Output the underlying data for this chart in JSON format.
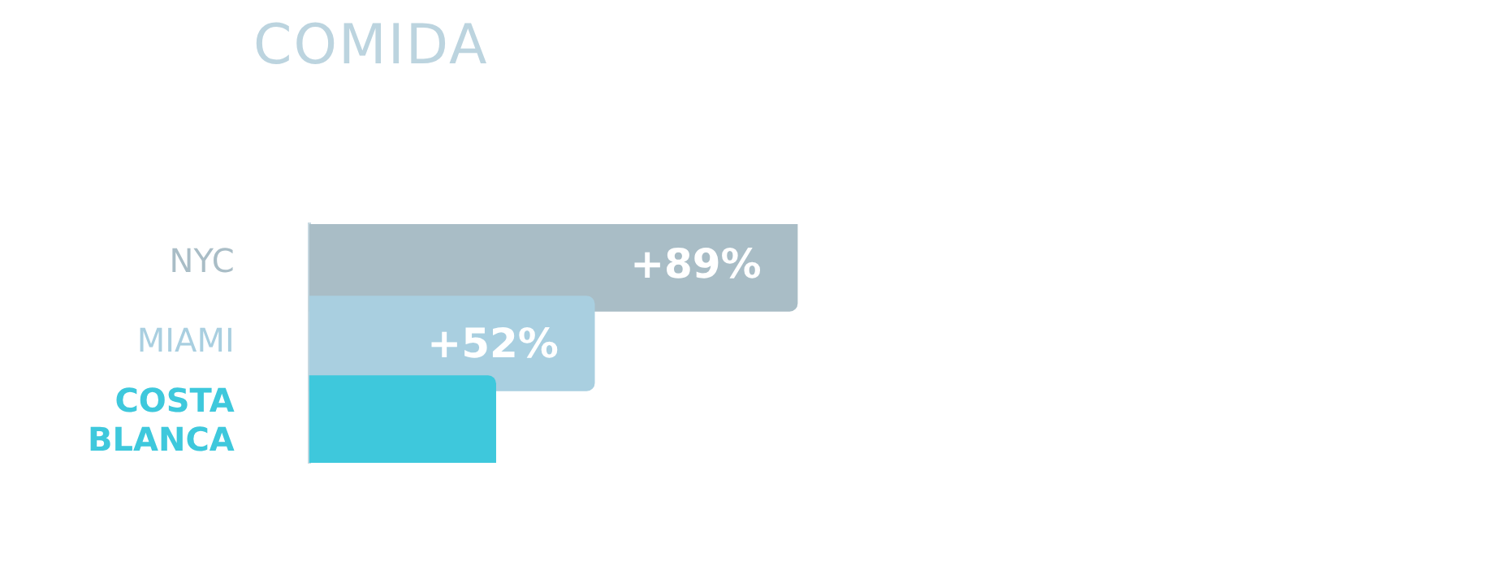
{
  "chart_data": {
    "type": "bar",
    "orientation": "horizontal",
    "title": "COMIDA",
    "categories": [
      "NYC",
      "MIAMI",
      "COSTA BLANCA"
    ],
    "values": [
      89,
      52,
      34
    ],
    "value_labels": [
      "+89%",
      "+52%",
      null
    ],
    "colors": [
      "#a9bdc6",
      "#a9cfe0",
      "#3ec8dc"
    ],
    "tick_labels": "y",
    "legend": false
  }
}
